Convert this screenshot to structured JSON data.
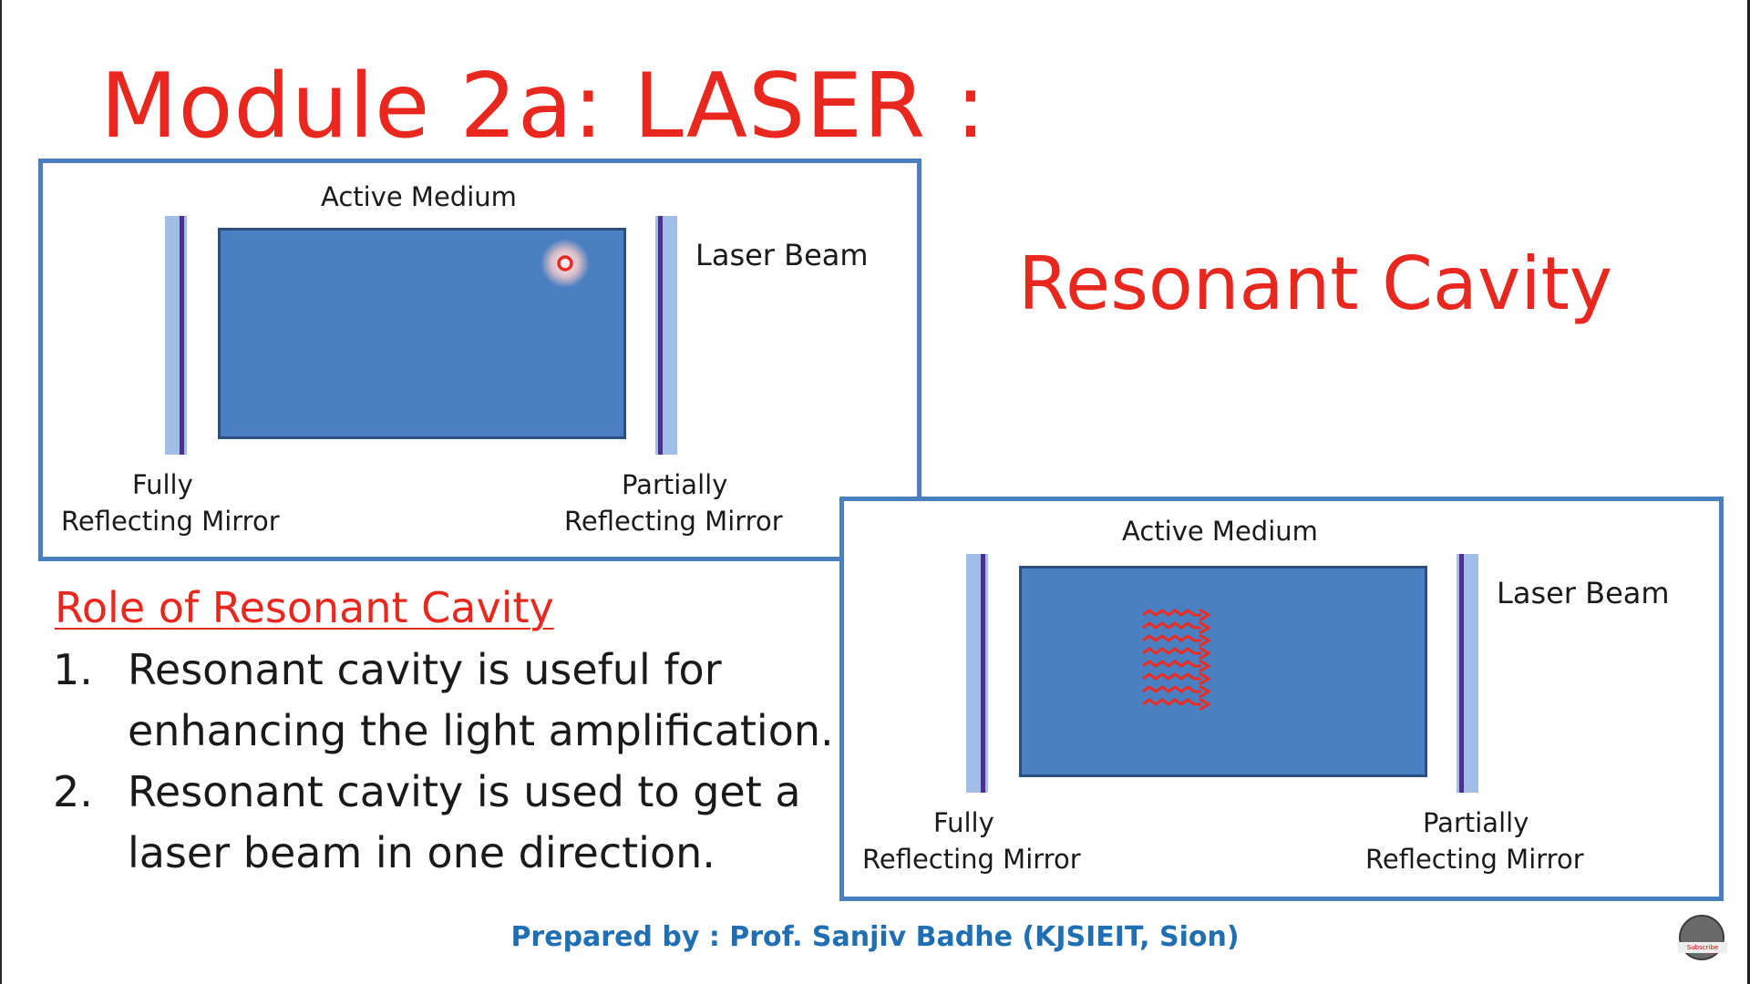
{
  "slide": {
    "title": "Module 2a: LASER :",
    "subtitle": "Resonant Cavity"
  },
  "colors": {
    "title_red": "#e8281e",
    "footer_blue": "#1f6fb2",
    "frame_blue": "#4a7fbf",
    "medium_blue": "#4a7fc1",
    "photon_red": "#ee2b22"
  },
  "diagram_top": {
    "active_medium_label": "Active Medium",
    "laser_beam_label": "Laser Beam",
    "left_mirror_line1": "Fully",
    "left_mirror_line2": "Reflecting Mirror",
    "right_mirror_line1": "Partially",
    "right_mirror_line2": "Reflecting Mirror"
  },
  "diagram_bottom": {
    "active_medium_label": "Active Medium",
    "laser_beam_label": "Laser Beam",
    "left_mirror_line1": "Fully",
    "left_mirror_line2": "Reflecting Mirror",
    "right_mirror_line1": "Partially",
    "right_mirror_line2": "Reflecting Mirror"
  },
  "role": {
    "heading": "Role of Resonant Cavity",
    "items": [
      {
        "number": "1.",
        "text": "Resonant cavity is useful for enhancing the light amplification."
      },
      {
        "number": "2.",
        "text": "Resonant cavity is used to get a laser beam in one direction."
      }
    ]
  },
  "footer": {
    "text": "Prepared by : Prof. Sanjiv Badhe (KJSIEIT, Sion)"
  },
  "channel": {
    "subscribe_label": "Subscribe"
  }
}
